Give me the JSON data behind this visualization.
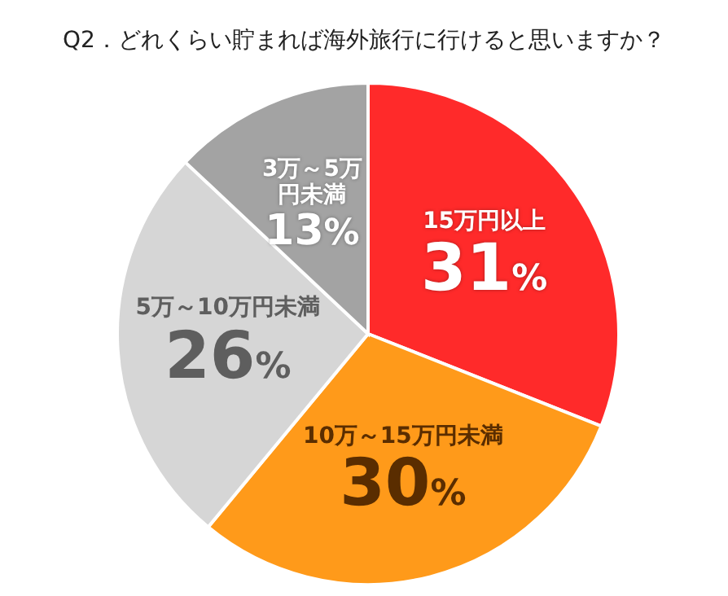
{
  "chart_data": {
    "type": "pie",
    "title": "Q2．どれくらい貯まれば海外旅行に行けると思いますか？",
    "categories": [
      "15万円以上",
      "10万～15万円未満",
      "5万～10万円未満",
      "3万～5万円未満"
    ],
    "values": [
      31,
      30,
      26,
      13
    ],
    "value_labels": [
      "31%",
      "30%",
      "26%",
      "13%"
    ],
    "colors": [
      "#ff2a2a",
      "#ff9a1a",
      "#d6d6d6",
      "#a3a3a3"
    ]
  }
}
